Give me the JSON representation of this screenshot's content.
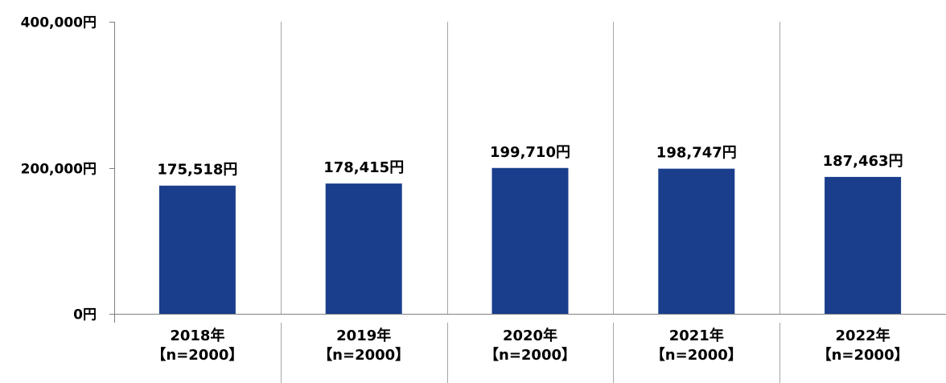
{
  "chart_data": {
    "type": "bar",
    "categories": [
      "2018年",
      "2019年",
      "2020年",
      "2021年",
      "2022年"
    ],
    "category_sublabels": [
      "【n=2000】",
      "【n=2000】",
      "【n=2000】",
      "【n=2000】",
      "【n=2000】"
    ],
    "values": [
      175518,
      178415,
      199710,
      198747,
      187463
    ],
    "data_labels": [
      "175,518円",
      "178,415円",
      "199,710円",
      "198,747円",
      "187,463円"
    ],
    "y_ticks": [
      0,
      200000,
      400000
    ],
    "y_tick_labels": [
      "0円",
      "200,000円",
      "400,000円"
    ],
    "ylim": [
      0,
      400000
    ],
    "title": "",
    "xlabel": "",
    "ylabel": "",
    "grid": "vertical category separators",
    "colors": {
      "bar": "#1a3e8c",
      "axis": "#808080",
      "separator": "#a6a6a6"
    }
  }
}
